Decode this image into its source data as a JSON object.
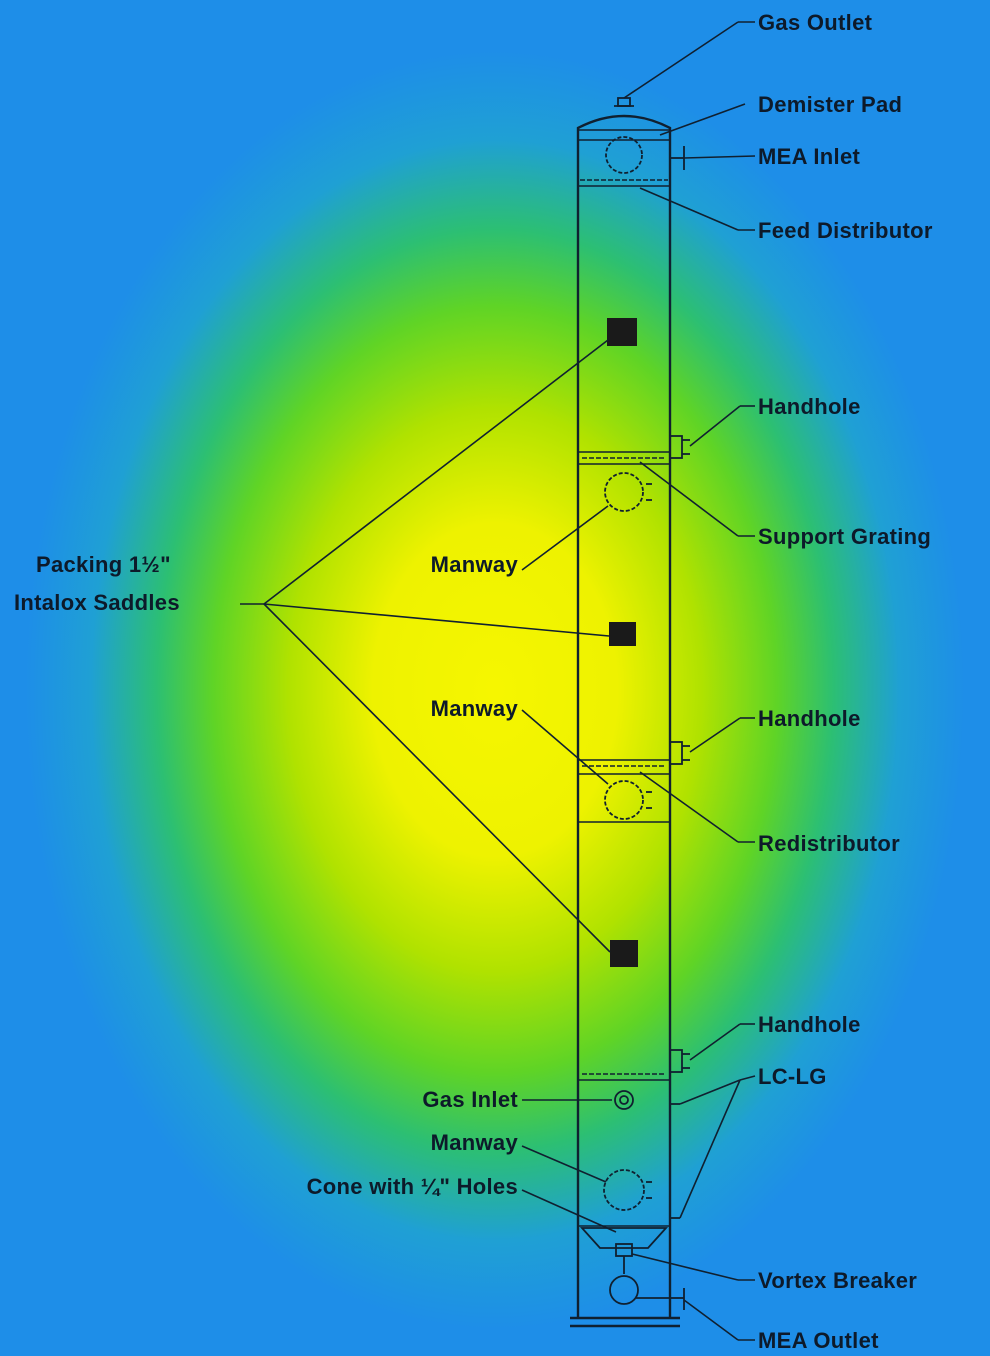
{
  "diagram": {
    "colors": {
      "background_outer": "#1e8ee8",
      "background_center": "#f6f600",
      "line": "#102030",
      "text": "#0d1a2a"
    },
    "labels": {
      "gas_outlet": "Gas Outlet",
      "demister_pad": "Demister Pad",
      "mea_inlet": "MEA Inlet",
      "feed_distributor": "Feed Distributor",
      "handhole_1": "Handhole",
      "support_grating": "Support Grating",
      "packing_line1": "Packing 1½\"",
      "packing_line2": "Intalox Saddles",
      "manway_1": "Manway",
      "manway_2": "Manway",
      "handhole_2": "Handhole",
      "redistributor": "Redistributor",
      "handhole_3": "Handhole",
      "lc_lg": "LC-LG",
      "gas_inlet": "Gas Inlet",
      "manway_3": "Manway",
      "cone": "Cone with ¼\" Holes",
      "vortex_breaker": "Vortex Breaker",
      "mea_outlet": "MEA Outlet"
    }
  }
}
